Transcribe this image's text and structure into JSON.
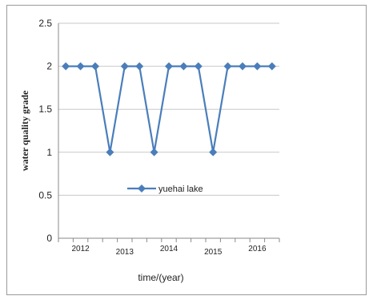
{
  "chart_data": {
    "type": "line",
    "title": "",
    "xlabel": "time/(year)",
    "ylabel": "water quality grade",
    "ylim": [
      0,
      2.5
    ],
    "yticks": [
      "0",
      "0.5",
      "1",
      "1.5",
      "2",
      "2.5"
    ],
    "year_labels": [
      "2012",
      "2013",
      "2014",
      "2015",
      "2016"
    ],
    "grid": "horizontal",
    "legend_position": "center",
    "series": [
      {
        "name": "yuehai lake",
        "color": "#4a7ebb",
        "marker": "diamond",
        "values": [
          2,
          2,
          2,
          1,
          2,
          2,
          1,
          2,
          2,
          2,
          1,
          2,
          2,
          2,
          2
        ]
      }
    ]
  }
}
